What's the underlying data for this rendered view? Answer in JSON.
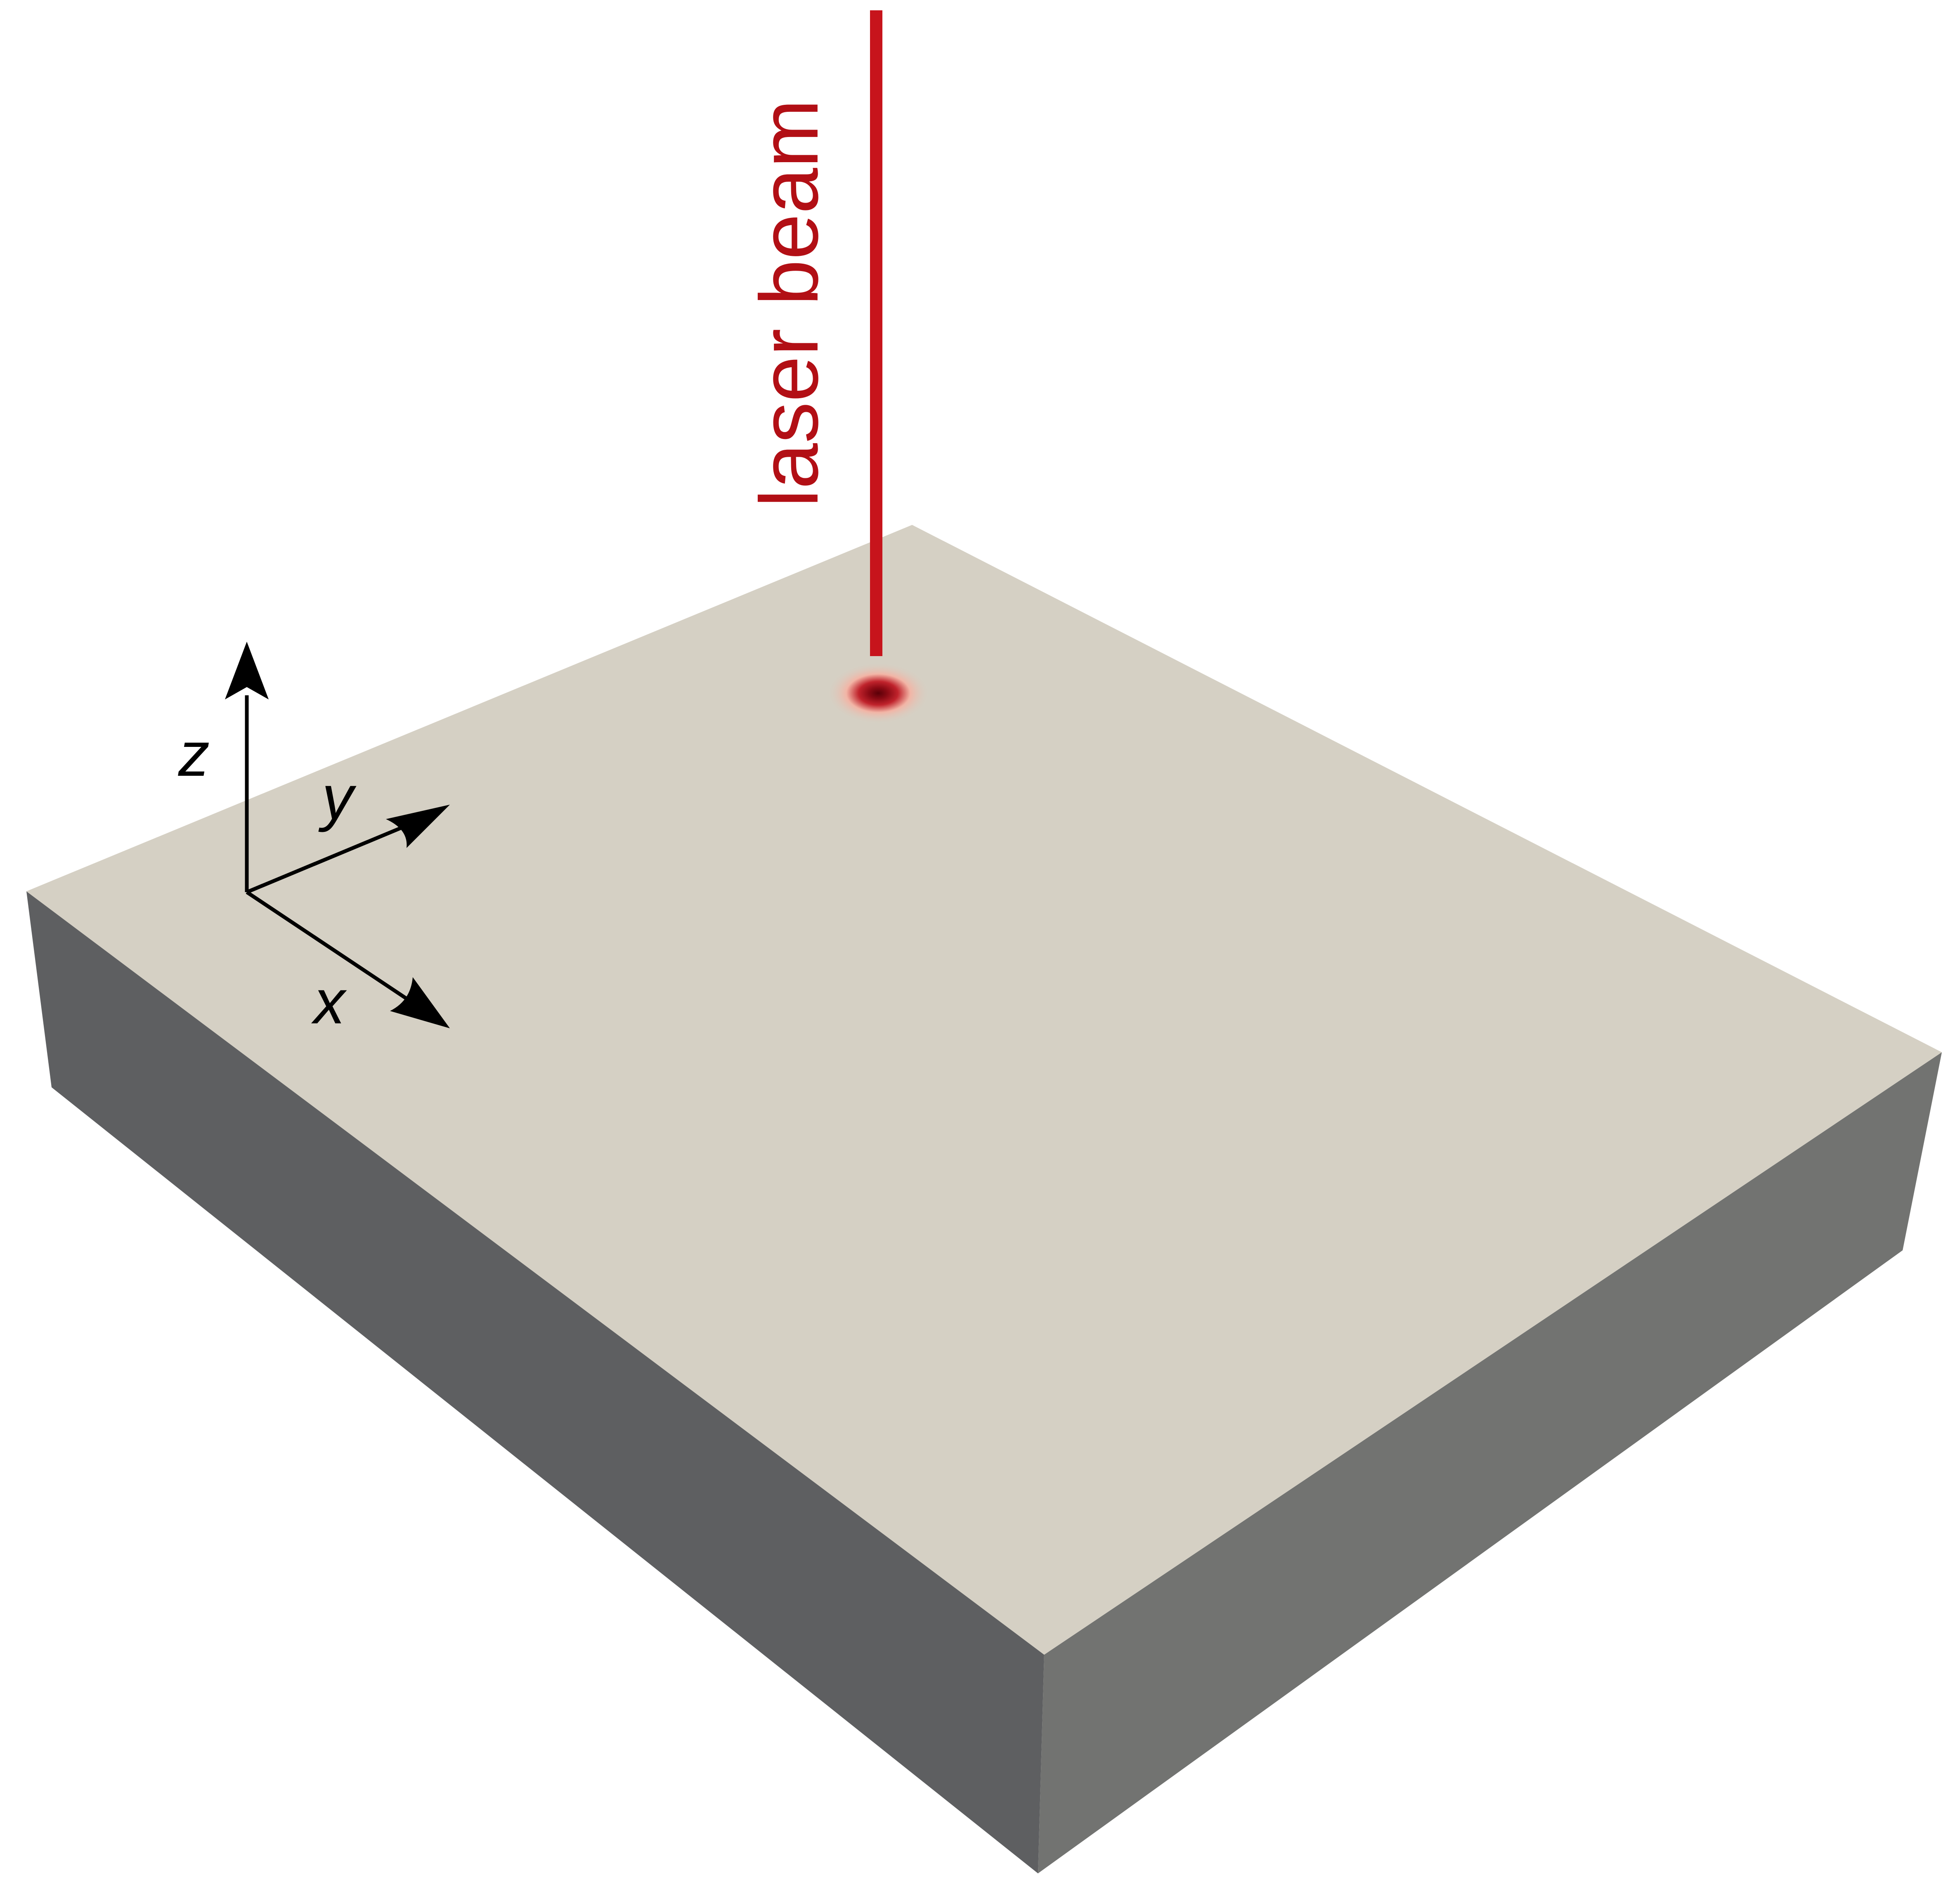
{
  "labels": {
    "laser_beam": "laser beam",
    "axis_x": "x",
    "axis_y": "y",
    "axis_z": "z"
  },
  "colors": {
    "background": "#ffffff",
    "slab_top": "#d5d0c4",
    "slab_left_face": "#5e5f61",
    "slab_right_face": "#727371",
    "laser_beam": "#c7141c",
    "laser_label": "#b20f15",
    "hot_spot_core": "#5a0008",
    "hot_spot_mid": "#c0232c",
    "hot_spot_halo": "#f2b5a6",
    "axes": "#000000"
  },
  "icons": {
    "axis_arrowheads": "filled-triangle-arrow"
  }
}
